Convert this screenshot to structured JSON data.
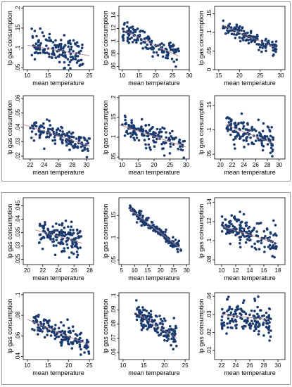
{
  "colors": {
    "dot": "#1b3b6f",
    "fit": "#b07a88",
    "frame": "#000000",
    "group_border": "#9a9a9a"
  },
  "chart_data": [
    {
      "type": "scatter",
      "group": 0,
      "row": 0,
      "col": 0,
      "xlabel": "mean temperature",
      "ylabel": "lp gas consumption",
      "xlim": [
        9,
        26
      ],
      "ylim": [
        0.045,
        0.205
      ],
      "xticks": [
        10,
        15,
        20,
        25
      ],
      "yticks": [
        0.05,
        0.1,
        0.15,
        0.2
      ],
      "ytick_labels": [
        ".05",
        ".1",
        ".15",
        ".2"
      ],
      "fit": [
        [
          10,
          0.107
        ],
        [
          25,
          0.08
        ]
      ],
      "seed": 11,
      "n": 150,
      "xr": [
        11,
        23.5
      ],
      "slope": -0.0018,
      "noise": 0.032,
      "grid": false
    },
    {
      "type": "scatter",
      "group": 0,
      "row": 0,
      "col": 1,
      "xlabel": "mean temperature",
      "ylabel": "lp gas consumption",
      "xlim": [
        9,
        30
      ],
      "ylim": [
        0.055,
        0.155
      ],
      "xticks": [
        10,
        15,
        20,
        25,
        30
      ],
      "yticks": [
        0.06,
        0.08,
        0.1,
        0.12,
        0.14
      ],
      "ytick_labels": [
        ".06",
        ".08",
        ".1",
        ".12",
        ".14"
      ],
      "fit": [
        [
          10,
          0.118
        ],
        [
          27,
          0.076
        ]
      ],
      "seed": 23,
      "n": 140,
      "xr": [
        10,
        27
      ],
      "slope": -0.0025,
      "noise": 0.016,
      "grid": false
    },
    {
      "type": "scatter",
      "group": 0,
      "row": 0,
      "col": 2,
      "xlabel": "mean temperature",
      "ylabel": "lp gas consumption",
      "xlim": [
        14,
        31
      ],
      "ylim": [
        0,
        0.17
      ],
      "xticks": [
        15,
        20,
        25,
        30
      ],
      "yticks": [
        0,
        0.05,
        0.1,
        0.15
      ],
      "ytick_labels": [
        "0",
        ".05",
        ".1",
        ".15"
      ],
      "fit": [
        [
          16,
          0.118
        ],
        [
          29,
          0.058
        ]
      ],
      "seed": 37,
      "n": 130,
      "xr": [
        16,
        29
      ],
      "slope": -0.0046,
      "noise": 0.018,
      "grid": false
    },
    {
      "type": "scatter",
      "group": 0,
      "row": 1,
      "col": 0,
      "xlabel": "mean temperature",
      "ylabel": "lp gas consumption",
      "xlim": [
        21,
        31
      ],
      "ylim": [
        0.018,
        0.062
      ],
      "xticks": [
        22,
        24,
        26,
        28,
        30
      ],
      "yticks": [
        0.02,
        0.03,
        0.04,
        0.05,
        0.06
      ],
      "ytick_labels": [
        ".02",
        ".03",
        ".04",
        ".05",
        ".06"
      ],
      "fit": [
        [
          21,
          0.042
        ],
        [
          30.5,
          0.027
        ]
      ],
      "seed": 41,
      "n": 150,
      "xr": [
        22,
        30.5
      ],
      "slope": -0.0016,
      "noise": 0.006,
      "grid": false
    },
    {
      "type": "scatter",
      "group": 0,
      "row": 1,
      "col": 1,
      "xlabel": "mean temperature",
      "ylabel": "lp gas consumption",
      "xlim": [
        9,
        31
      ],
      "ylim": [
        0.045,
        0.205
      ],
      "xticks": [
        10,
        15,
        20,
        25,
        30
      ],
      "yticks": [
        0.05,
        0.1,
        0.15,
        0.2
      ],
      "ytick_labels": [
        ".05",
        ".1",
        ".15",
        ".2"
      ],
      "fit": [
        [
          9,
          0.132
        ],
        [
          30,
          0.075
        ]
      ],
      "seed": 53,
      "n": 150,
      "xr": [
        10,
        30
      ],
      "slope": -0.0027,
      "noise": 0.025,
      "grid": false
    },
    {
      "type": "scatter",
      "group": 0,
      "row": 1,
      "col": 2,
      "xlabel": "mean temperature",
      "ylabel": "lp gas consumption",
      "xlim": [
        19,
        31
      ],
      "ylim": [
        0.04,
        0.17
      ],
      "xticks": [
        20,
        22,
        24,
        26,
        28,
        30
      ],
      "yticks": [
        0.05,
        0.1,
        0.15
      ],
      "ytick_labels": [
        ".05",
        ".1",
        ".15"
      ],
      "fit": [
        [
          21,
          0.11
        ],
        [
          29,
          0.072
        ]
      ],
      "seed": 67,
      "n": 140,
      "xr": [
        21,
        29
      ],
      "slope": -0.0048,
      "noise": 0.026,
      "grid": false
    },
    {
      "type": "scatter",
      "group": 1,
      "row": 0,
      "col": 0,
      "xlabel": "mean temperature",
      "ylabel": "lp gas consumption",
      "xlim": [
        19.5,
        28.5
      ],
      "ylim": [
        0.023,
        0.048
      ],
      "xticks": [
        20,
        22,
        24,
        26,
        28
      ],
      "yticks": [
        0.025,
        0.03,
        0.035,
        0.04,
        0.045
      ],
      "ytick_labels": [
        ".025",
        ".03",
        ".035",
        ".04",
        ".045"
      ],
      "fit": [
        [
          21,
          0.036
        ],
        [
          27,
          0.031
        ]
      ],
      "seed": 71,
      "n": 150,
      "xr": [
        21.5,
        27
      ],
      "slope": -0.0009,
      "noise": 0.0055,
      "grid": false
    },
    {
      "type": "scatter",
      "group": 1,
      "row": 0,
      "col": 1,
      "xlabel": "mean temperature",
      "ylabel": "lp gas consumption",
      "xlim": [
        4,
        31
      ],
      "ylim": [
        0.04,
        0.19
      ],
      "xticks": [
        5,
        10,
        15,
        20,
        25,
        30
      ],
      "yticks": [
        0.05,
        0.1,
        0.15
      ],
      "ytick_labels": [
        ".05",
        ".1",
        ".15"
      ],
      "fit": [
        [
          8,
          0.165
        ],
        [
          28,
          0.075
        ]
      ],
      "seed": 83,
      "n": 150,
      "xr": [
        8,
        28
      ],
      "slope": -0.0045,
      "noise": 0.012,
      "grid": false
    },
    {
      "type": "scatter",
      "group": 1,
      "row": 0,
      "col": 2,
      "xlabel": "mean temperature",
      "ylabel": "lp gas consumption",
      "xlim": [
        9,
        19
      ],
      "ylim": [
        0.075,
        0.145
      ],
      "xticks": [
        10,
        12,
        14,
        16,
        18
      ],
      "yticks": [
        0.08,
        0.1,
        0.12,
        0.14
      ],
      "ytick_labels": [
        ".08",
        ".1",
        ".12",
        ".14"
      ],
      "fit": [
        [
          10,
          0.115
        ],
        [
          18,
          0.097
        ]
      ],
      "seed": 97,
      "n": 150,
      "xr": [
        10,
        18
      ],
      "slope": -0.0022,
      "noise": 0.014,
      "grid": false
    },
    {
      "type": "scatter",
      "group": 1,
      "row": 1,
      "col": 0,
      "xlabel": "mean temperature",
      "ylabel": "lp gas consumption",
      "xlim": [
        9,
        26
      ],
      "ylim": [
        0.037,
        0.102
      ],
      "xticks": [
        10,
        15,
        20,
        25
      ],
      "yticks": [
        0.04,
        0.06,
        0.08,
        0.1
      ],
      "ytick_labels": [
        ".04",
        ".06",
        ".08",
        ".1"
      ],
      "fit": [
        [
          10,
          0.076
        ],
        [
          25,
          0.051
        ]
      ],
      "seed": 101,
      "n": 150,
      "xr": [
        11,
        25
      ],
      "slope": -0.0017,
      "noise": 0.009,
      "grid": false
    },
    {
      "type": "scatter",
      "group": 1,
      "row": 1,
      "col": 1,
      "xlabel": "mean temperature",
      "ylabel": "lp gas consumption",
      "xlim": [
        9,
        26
      ],
      "ylim": [
        0.055,
        0.102
      ],
      "xticks": [
        10,
        15,
        20,
        25
      ],
      "yticks": [
        0.06,
        0.07,
        0.08,
        0.09,
        0.1
      ],
      "ytick_labels": [
        ".06",
        ".07",
        ".08",
        ".09",
        ".1"
      ],
      "fit": [
        [
          13,
          0.088
        ],
        [
          23,
          0.07
        ]
      ],
      "seed": 113,
      "n": 150,
      "xr": [
        13,
        23
      ],
      "slope": -0.0018,
      "noise": 0.008,
      "grid": false
    },
    {
      "type": "scatter",
      "group": 1,
      "row": 1,
      "col": 2,
      "xlabel": "mean temperature",
      "ylabel": "lp gas consumption",
      "xlim": [
        21,
        31
      ],
      "ylim": [
        0.005,
        0.042
      ],
      "xticks": [
        22,
        24,
        26,
        28,
        30
      ],
      "yticks": [
        0.01,
        0.02,
        0.03,
        0.04
      ],
      "ytick_labels": [
        ".01",
        ".02",
        ".03",
        ".04"
      ],
      "fit": [
        [
          22,
          0.03
        ],
        [
          29,
          0.027
        ]
      ],
      "seed": 127,
      "n": 150,
      "xr": [
        22,
        29
      ],
      "slope": -0.0004,
      "noise": 0.0085,
      "grid": false
    }
  ]
}
